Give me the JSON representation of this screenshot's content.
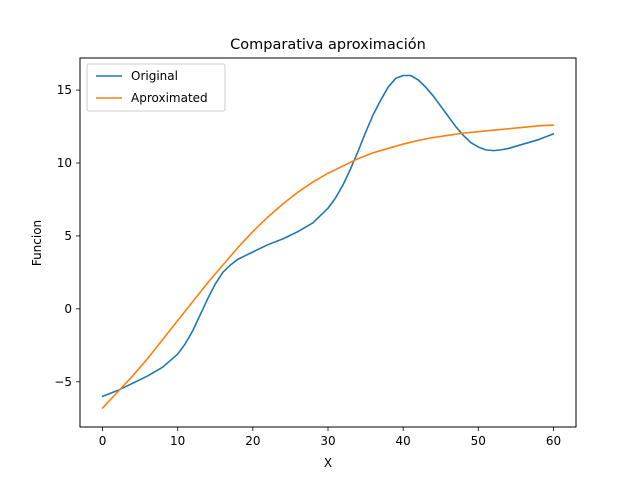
{
  "chart_data": {
    "type": "line",
    "title": "Comparativa aproximación",
    "xlabel": "X",
    "ylabel": "Funcion",
    "xlim": [
      -3,
      63
    ],
    "ylim": [
      -8.1,
      17.2
    ],
    "xticks": [
      0,
      10,
      20,
      30,
      40,
      50,
      60
    ],
    "yticks": [
      -5,
      0,
      5,
      10,
      15
    ],
    "grid": false,
    "legend": "top-left",
    "series": [
      {
        "name": "Original",
        "color": "#1f77b4",
        "x": [
          0,
          2,
          4,
          6,
          8,
          10,
          11,
          12,
          13,
          14,
          15,
          16,
          17,
          18,
          20,
          22,
          24,
          26,
          28,
          30,
          31,
          32,
          33,
          34,
          35,
          36,
          37,
          38,
          39,
          40,
          41,
          42,
          43,
          44,
          45,
          46,
          47,
          48,
          49,
          50,
          51,
          52,
          53,
          54,
          56,
          58,
          60
        ],
        "y": [
          -6.0,
          -5.6,
          -5.1,
          -4.6,
          -4.0,
          -3.1,
          -2.4,
          -1.5,
          -0.4,
          0.7,
          1.7,
          2.5,
          3.0,
          3.4,
          3.9,
          4.4,
          4.8,
          5.3,
          5.9,
          6.9,
          7.6,
          8.5,
          9.6,
          10.8,
          12.1,
          13.3,
          14.3,
          15.2,
          15.8,
          16.0,
          16.0,
          15.7,
          15.2,
          14.6,
          13.9,
          13.2,
          12.5,
          11.9,
          11.4,
          11.1,
          10.9,
          10.85,
          10.9,
          11.0,
          11.3,
          11.6,
          12.0
        ]
      },
      {
        "name": "Aproximated",
        "color": "#ff7f0e",
        "x": [
          0,
          2,
          4,
          6,
          8,
          10,
          12,
          14,
          16,
          18,
          20,
          22,
          24,
          26,
          28,
          30,
          32,
          34,
          36,
          38,
          40,
          42,
          44,
          46,
          48,
          50,
          52,
          54,
          56,
          58,
          60
        ],
        "y": [
          -6.8,
          -5.7,
          -4.6,
          -3.4,
          -2.1,
          -0.8,
          0.5,
          1.8,
          3.0,
          4.2,
          5.3,
          6.3,
          7.2,
          8.0,
          8.7,
          9.3,
          9.8,
          10.3,
          10.7,
          11.0,
          11.3,
          11.55,
          11.75,
          11.9,
          12.05,
          12.15,
          12.25,
          12.35,
          12.45,
          12.55,
          12.6
        ]
      }
    ]
  }
}
